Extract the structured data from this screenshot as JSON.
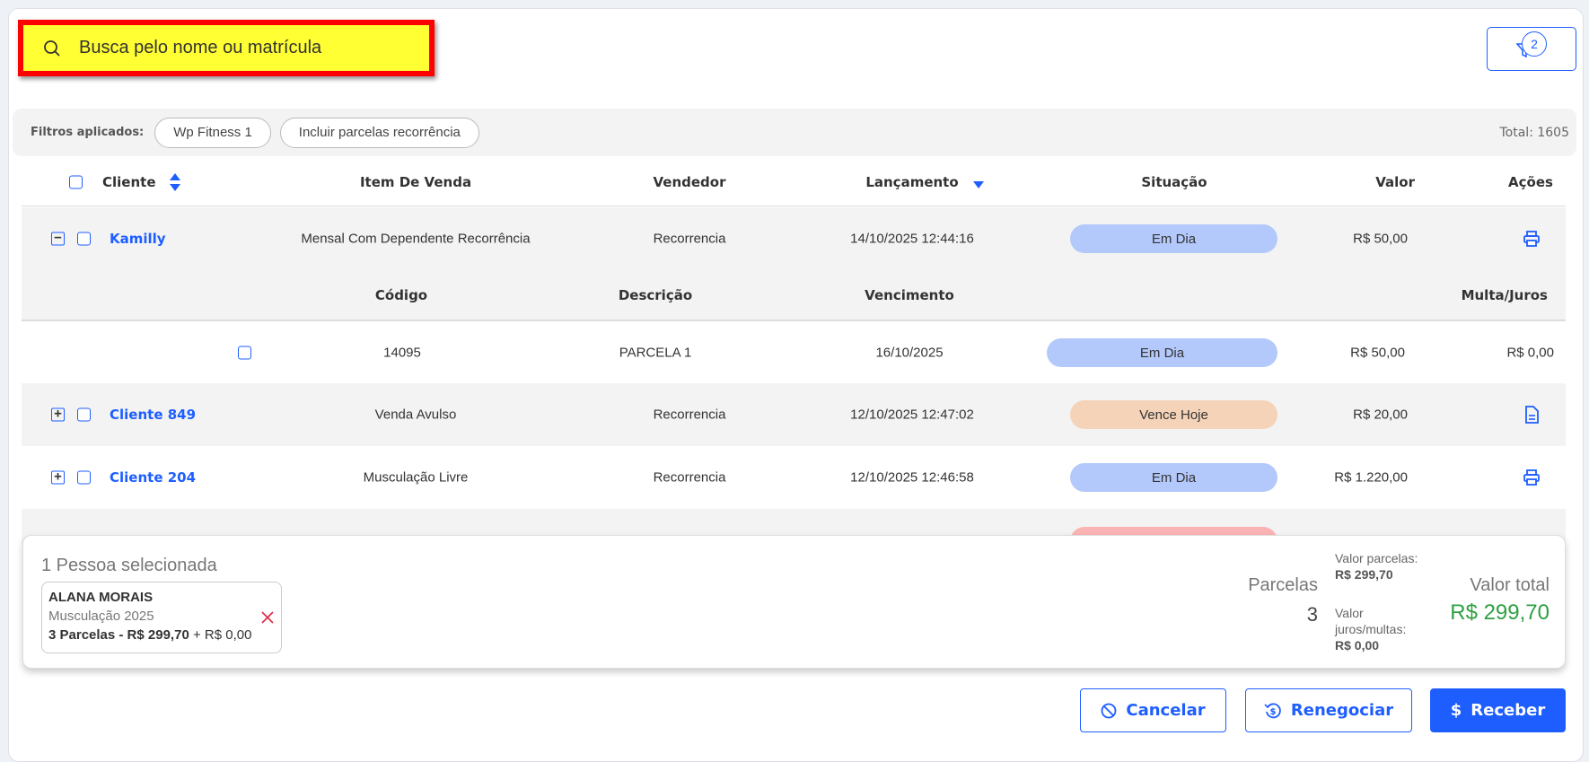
{
  "search": {
    "placeholder": "Busca pelo nome ou matrícula",
    "icon": "search-icon"
  },
  "filter_button": {
    "icon": "filter-icon",
    "count": "2"
  },
  "filters": {
    "label": "Filtros aplicados:",
    "chips": [
      "Wp Fitness 1",
      "Incluir parcelas recorrência"
    ],
    "total": "Total: 1605"
  },
  "table": {
    "headers": {
      "cliente": "Cliente",
      "item": "Item De Venda",
      "vendedor": "Vendedor",
      "lancamento": "Lançamento",
      "situacao": "Situação",
      "valor": "Valor",
      "acoes": "Ações"
    },
    "rows": [
      {
        "cliente": "Kamilly",
        "item": "Mensal Com Dependente Recorrência",
        "vendedor": "Recorrencia",
        "lancamento": "14/10/2025 12:44:16",
        "situacao": "Em Dia",
        "valor": "R$ 50,00",
        "action_icon": "printer-icon",
        "expanded": true
      },
      {
        "cliente": "Cliente 849",
        "item": "Venda Avulso",
        "vendedor": "Recorrencia",
        "lancamento": "12/10/2025 12:47:02",
        "situacao": "Vence Hoje",
        "valor": "R$ 20,00",
        "action_icon": "document-icon",
        "expanded": false
      },
      {
        "cliente": "Cliente 204",
        "item": "Musculação Livre",
        "vendedor": "Recorrencia",
        "lancamento": "12/10/2025 12:46:58",
        "situacao": "Em Dia",
        "valor": "R$ 1.220,00",
        "action_icon": "printer-icon",
        "expanded": false
      }
    ],
    "sub_headers": {
      "codigo": "Código",
      "descricao": "Descrição",
      "vencimento": "Vencimento",
      "multa": "Multa/Juros"
    },
    "sub_rows": [
      {
        "codigo": "14095",
        "descricao": "PARCELA 1",
        "vencimento": "16/10/2025",
        "situacao": "Em Dia",
        "valor": "R$ 50,00",
        "multa": "R$ 0,00"
      }
    ]
  },
  "status_colors": {
    "Em Dia": "#b3c8fb",
    "Vence Hoje": "#f5d3b8",
    "Vencido": "#fbb4b4"
  },
  "selection": {
    "title": "1 Pessoa selecionada",
    "person": {
      "name": "ALANA MORAIS",
      "plan": "Musculação 2025",
      "summary": "3 Parcelas - R$ 299,70",
      "extra": "+ R$ 0,00"
    },
    "parcelas_label": "Parcelas",
    "parcelas_count": "3",
    "valor_parcelas_label": "Valor parcelas:",
    "valor_parcelas": "R$ 299,70",
    "valor_juros_label": "Valor juros/multas:",
    "valor_juros": "R$ 0,00",
    "valor_total_label": "Valor total",
    "valor_total": "R$ 299,70"
  },
  "actions": {
    "cancelar": "Cancelar",
    "renegociar": "Renegociar",
    "receber": "Receber"
  },
  "colors": {
    "accent": "#1e5eff",
    "total_green": "#2ea043"
  }
}
